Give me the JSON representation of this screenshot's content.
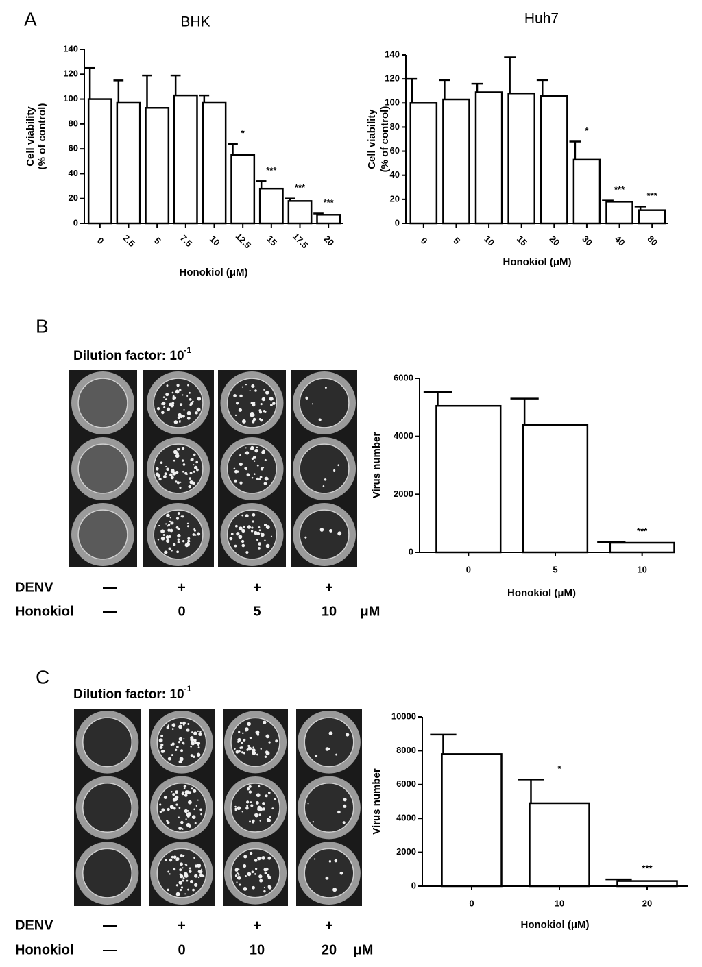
{
  "panel_labels": [
    "A",
    "B",
    "C"
  ],
  "plates": [
    {
      "dilution_label": "Dilution factor: 10",
      "dilution_exponent": "-1",
      "rows": [
        {
          "label": "DENV",
          "cells": [
            "—",
            "+",
            "+",
            "+"
          ]
        },
        {
          "label": "Honokiol",
          "cells": [
            "—",
            "0",
            "5",
            "10"
          ],
          "unit": "μM"
        }
      ]
    },
    {
      "dilution_label": "Dilution factor: 10",
      "dilution_exponent": "-1",
      "rows": [
        {
          "label": "DENV",
          "cells": [
            "—",
            "+",
            "+",
            "+"
          ]
        },
        {
          "label": "Honokiol",
          "cells": [
            "—",
            "0",
            "10",
            "20"
          ],
          "unit": "μM"
        }
      ]
    }
  ],
  "chart_data": [
    {
      "type": "bar",
      "title": "BHK",
      "y_label": [
        "Cell viability",
        "(% of control)"
      ],
      "x_label": "Honokiol (μM)",
      "categories": [
        "0",
        "2.5",
        "5",
        "7.5",
        "10",
        "12.5",
        "15",
        "17.5",
        "20"
      ],
      "values": [
        100,
        97,
        93,
        103,
        97,
        55,
        28,
        18,
        7
      ],
      "errors": [
        25,
        18,
        26,
        16,
        6,
        9,
        6,
        2,
        1
      ],
      "annotations": [
        null,
        null,
        null,
        null,
        null,
        "*",
        "***",
        "***",
        "***"
      ],
      "color": "#ffffff",
      "edge_color": "#000000",
      "ylim": [
        0,
        140
      ],
      "yticks": [
        0,
        20,
        40,
        60,
        80,
        100,
        120,
        140
      ]
    },
    {
      "type": "bar",
      "title": "Huh7",
      "y_label": [
        "Cell viability",
        "(% of control)"
      ],
      "x_label": "Honokiol (μM)",
      "categories": [
        "0",
        "5",
        "10",
        "15",
        "20",
        "30",
        "40",
        "80"
      ],
      "values": [
        100,
        103,
        109,
        108,
        106,
        53,
        18,
        11
      ],
      "errors": [
        20,
        16,
        7,
        30,
        13,
        15,
        1,
        3
      ],
      "annotations": [
        null,
        null,
        null,
        null,
        null,
        "*",
        "***",
        "***"
      ],
      "color": "#ffffff",
      "edge_color": "#000000",
      "ylim": [
        0,
        140
      ],
      "yticks": [
        0,
        20,
        40,
        60,
        80,
        100,
        120,
        140
      ]
    },
    {
      "type": "bar",
      "y_label": [
        "Virus number"
      ],
      "x_label": "Honokiol (μM)",
      "categories": [
        "0",
        "5",
        "10"
      ],
      "values": [
        5050,
        4400,
        330
      ],
      "errors": [
        480,
        900,
        20
      ],
      "annotations": [
        null,
        null,
        "***"
      ],
      "color": "#ffffff",
      "edge_color": "#000000",
      "ylim": [
        0,
        6000
      ],
      "yticks": [
        0,
        2000,
        4000,
        6000
      ]
    },
    {
      "type": "bar",
      "y_label": [
        "Virus number"
      ],
      "x_label": "Honokiol (μM)",
      "categories": [
        "0",
        "10",
        "20"
      ],
      "values": [
        7800,
        4900,
        300
      ],
      "errors": [
        1150,
        1400,
        100
      ],
      "annotations": [
        null,
        "*",
        "***"
      ],
      "color": "#ffffff",
      "edge_color": "#000000",
      "ylim": [
        0,
        10000
      ],
      "yticks": [
        0,
        2000,
        4000,
        6000,
        8000,
        10000
      ]
    }
  ]
}
